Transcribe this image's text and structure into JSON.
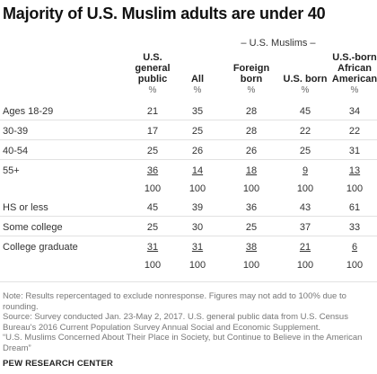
{
  "title": "Majority of U.S. Muslim adults are under 40",
  "group_label": "– U.S. Muslims –",
  "columns": [
    {
      "id": "general",
      "label": "U.S. general public",
      "lines": [
        "U.S.",
        "general",
        "public"
      ]
    },
    {
      "id": "all",
      "label": "All",
      "lines": [
        "All"
      ]
    },
    {
      "id": "foreign",
      "label": "Foreign born",
      "lines": [
        "Foreign",
        "born"
      ]
    },
    {
      "id": "usborn",
      "label": "U.S. born",
      "lines": [
        "U.S. born"
      ]
    },
    {
      "id": "afam",
      "label": "U.S.-born African American",
      "lines": [
        "U.S.-born",
        "African",
        "American"
      ]
    }
  ],
  "percent_symbol": "%",
  "age_rows": [
    {
      "label": "Ages 18-29",
      "values": [
        "21",
        "35",
        "28",
        "45",
        "34"
      ]
    },
    {
      "label": "30-39",
      "values": [
        "17",
        "25",
        "28",
        "22",
        "22"
      ]
    },
    {
      "label": "40-54",
      "values": [
        "25",
        "26",
        "26",
        "25",
        "31"
      ]
    },
    {
      "label": "55+",
      "values": [
        "36",
        "14",
        "18",
        "9",
        "13"
      ]
    }
  ],
  "age_total": [
    "100",
    "100",
    "100",
    "100",
    "100"
  ],
  "edu_rows": [
    {
      "label": "HS or less",
      "values": [
        "45",
        "39",
        "36",
        "43",
        "61"
      ]
    },
    {
      "label": "Some college",
      "values": [
        "25",
        "30",
        "25",
        "37",
        "33"
      ]
    },
    {
      "label": "College graduate",
      "values": [
        "31",
        "31",
        "38",
        "21",
        "6"
      ]
    }
  ],
  "edu_total": [
    "100",
    "100",
    "100",
    "100",
    "100"
  ],
  "note": "Note: Results repercentaged to exclude nonresponse. Figures may not add to 100% due to rounding.",
  "source": "Source: Survey conducted Jan. 23-May 2, 2017. U.S. general public data from U.S. Census Bureau's 2016 Current Population Survey Annual Social and Economic Supplement.",
  "report": "“U.S. Muslims Concerned About Their Place in Society, but Continue to Believe in the American Dream”",
  "org": "PEW RESEARCH CENTER"
}
